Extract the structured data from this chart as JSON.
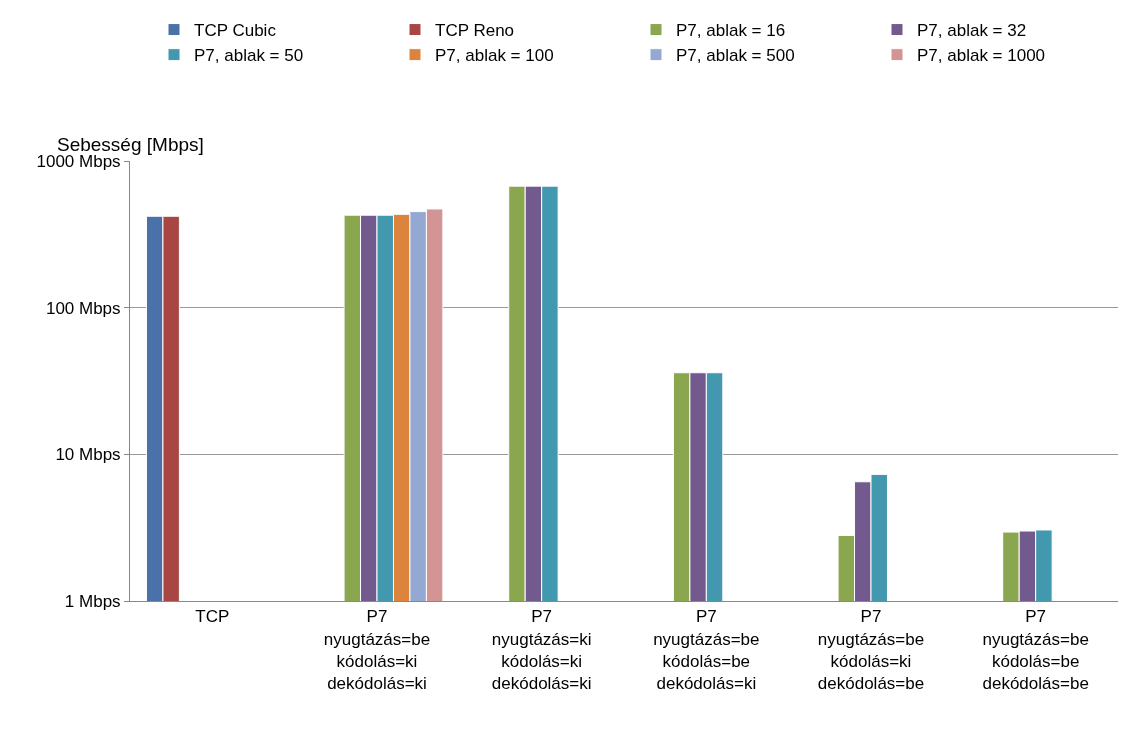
{
  "chart_data": {
    "type": "bar",
    "ylabel": "Sebesség [Mbps]",
    "categories": [
      "TCP",
      "P7\nnyugtázás=be\nkódolás=ki\ndekódolás=ki",
      "P7\nnyugtázás=ki\nkódolás=ki\ndekódolás=ki",
      "P7\nnyugtázás=be\nkódolás=be\ndekódolás=ki",
      "P7\nnyugtázás=be\nkódolás=ki\ndekódolás=be",
      "P7\nnyugtázás=be\nkódolás=be\ndekódolás=be"
    ],
    "series": [
      {
        "name": "TCP Cubic",
        "color": "#4a72a8",
        "values": [
          420,
          null,
          null,
          null,
          null,
          null
        ]
      },
      {
        "name": "TCP Reno",
        "color": "#a84644",
        "values": [
          420,
          null,
          null,
          null,
          null,
          null
        ]
      },
      {
        "name": "P7, ablak = 16",
        "color": "#8aa64e",
        "values": [
          null,
          427,
          674,
          36,
          2.8,
          2.95
        ]
      },
      {
        "name": "P7, ablak = 32",
        "color": "#725a8e",
        "values": [
          null,
          427,
          674,
          36,
          6.5,
          3.0
        ]
      },
      {
        "name": "P7, ablak = 50",
        "color": "#4298ae",
        "values": [
          null,
          427,
          674,
          36,
          7.3,
          3.05
        ]
      },
      {
        "name": "P7, ablak = 100",
        "color": "#dc843e",
        "values": [
          null,
          433,
          null,
          null,
          null,
          null
        ]
      },
      {
        "name": "P7, ablak = 500",
        "color": "#94a9d1",
        "values": [
          null,
          452,
          null,
          null,
          null,
          null
        ]
      },
      {
        "name": "P7, ablak = 1000",
        "color": "#d39494",
        "values": [
          null,
          471,
          null,
          null,
          null,
          null
        ]
      }
    ],
    "log": "y",
    "ylim": [
      1,
      1000
    ],
    "yticks": [
      {
        "value": 1,
        "label": "1 Mbps"
      },
      {
        "value": 10,
        "label": "10 Mbps"
      },
      {
        "value": 100,
        "label": "100 Mbps"
      },
      {
        "value": 1000,
        "label": "1000 Mbps"
      }
    ],
    "grid": "y",
    "legend": "top right"
  }
}
